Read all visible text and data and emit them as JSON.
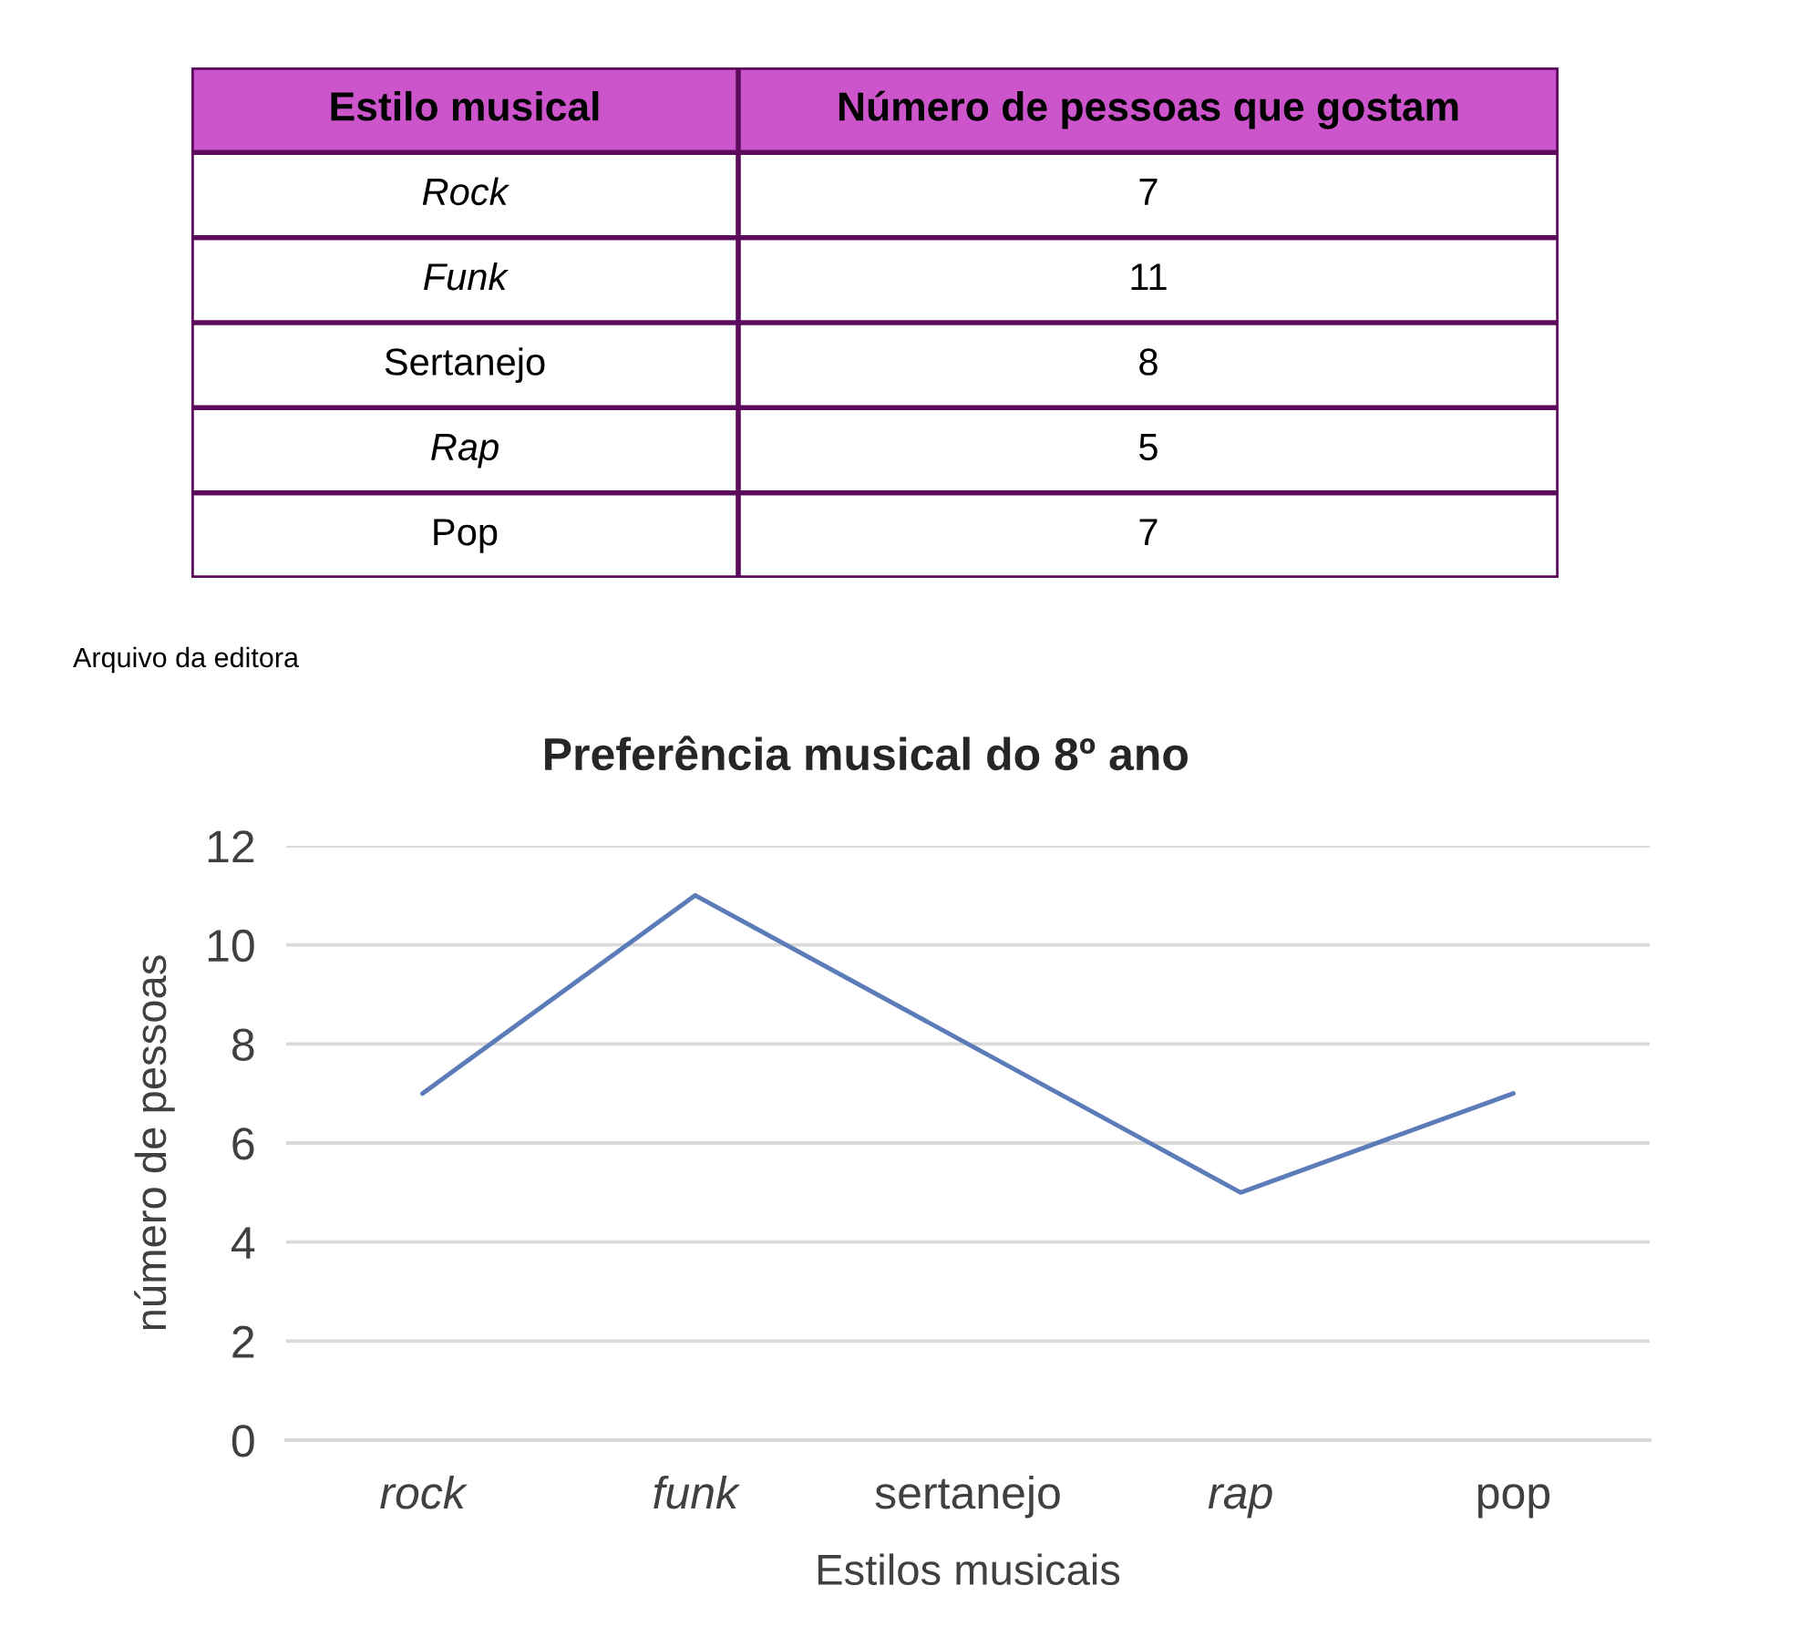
{
  "chart_data": [
    {
      "type": "other",
      "xlabel": "Estilo musical",
      "ylabel": "Número de pessoas que gostam",
      "categories": [
        "Rock",
        "Funk",
        "Sertanejo",
        "Rap",
        "Pop"
      ],
      "values": [
        7,
        11,
        8,
        5,
        7
      ],
      "data_labels": true
    },
    {
      "type": "line",
      "title": "Preferência musical do 8º ano",
      "xlabel": "Estilos musicais",
      "ylabel": "número de pessoas",
      "categories": [
        "rock",
        "funk",
        "sertanejo",
        "rap",
        "pop"
      ],
      "values": [
        7,
        11,
        8,
        5,
        7
      ],
      "color": "#5b7cb9",
      "ylim": [
        0,
        12
      ],
      "yticks": [
        0,
        2,
        4,
        6,
        8,
        10,
        12
      ],
      "grid": "y",
      "annotations": [
        "Arquivo da editora"
      ]
    }
  ]
}
